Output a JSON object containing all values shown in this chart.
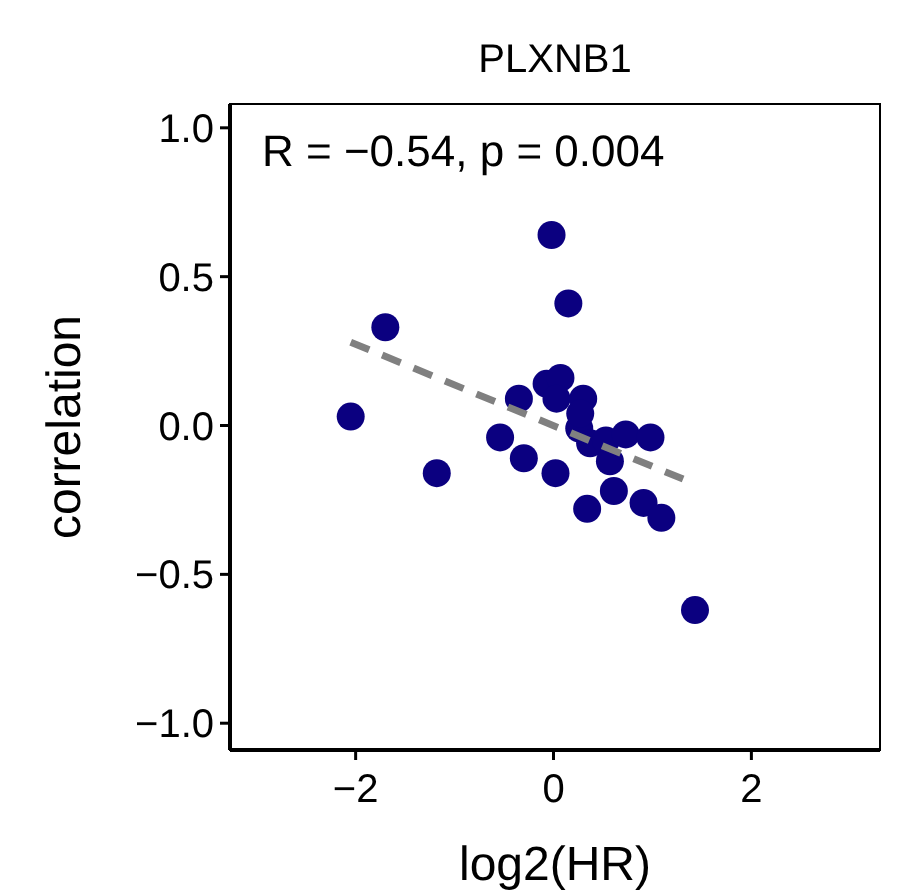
{
  "chart_data": {
    "type": "scatter",
    "title": "PLXNB1",
    "xlabel": "log2(HR)",
    "ylabel": "correlation",
    "annotations": [
      "R = −0.54, p = 0.004"
    ],
    "xlim": [
      -3.27,
      3.3
    ],
    "ylim": [
      -1.09,
      1.08
    ],
    "xticks": [
      -2,
      0,
      2
    ],
    "yticks": [
      {
        "value": -1,
        "label": "−1.0"
      },
      {
        "value": -0.5,
        "label": "−0.5"
      },
      {
        "value": 0,
        "label": "0.0"
      },
      {
        "value": 0.5,
        "label": "0.5"
      },
      {
        "value": 1,
        "label": "1.0"
      }
    ],
    "marker": "circle",
    "grid": false,
    "series": [
      {
        "color": "#0b0080",
        "x": [
          -0.02,
          0.15,
          -1.7,
          -2.05,
          -0.35,
          -0.07,
          0.07,
          0.03,
          0.3,
          0.26,
          0.27,
          -0.54,
          -0.3,
          -1.18,
          0.02,
          0.37,
          0.53,
          0.73,
          0.98,
          0.57,
          0.61,
          0.34,
          0.91,
          1.09,
          1.43
        ],
        "values": [
          0.64,
          0.41,
          0.33,
          0.03,
          0.09,
          0.14,
          0.16,
          0.09,
          0.09,
          -0.01,
          0.04,
          -0.04,
          -0.11,
          -0.16,
          -0.16,
          -0.06,
          -0.05,
          -0.03,
          -0.04,
          -0.12,
          -0.22,
          -0.28,
          -0.26,
          -0.31,
          -0.62
        ]
      },
      {
        "type": "line",
        "color": "#808080",
        "line_style": "dashed",
        "marker": "none",
        "x": [
          -2.05,
          1.31
        ],
        "values": [
          0.28,
          -0.18
        ]
      }
    ]
  }
}
